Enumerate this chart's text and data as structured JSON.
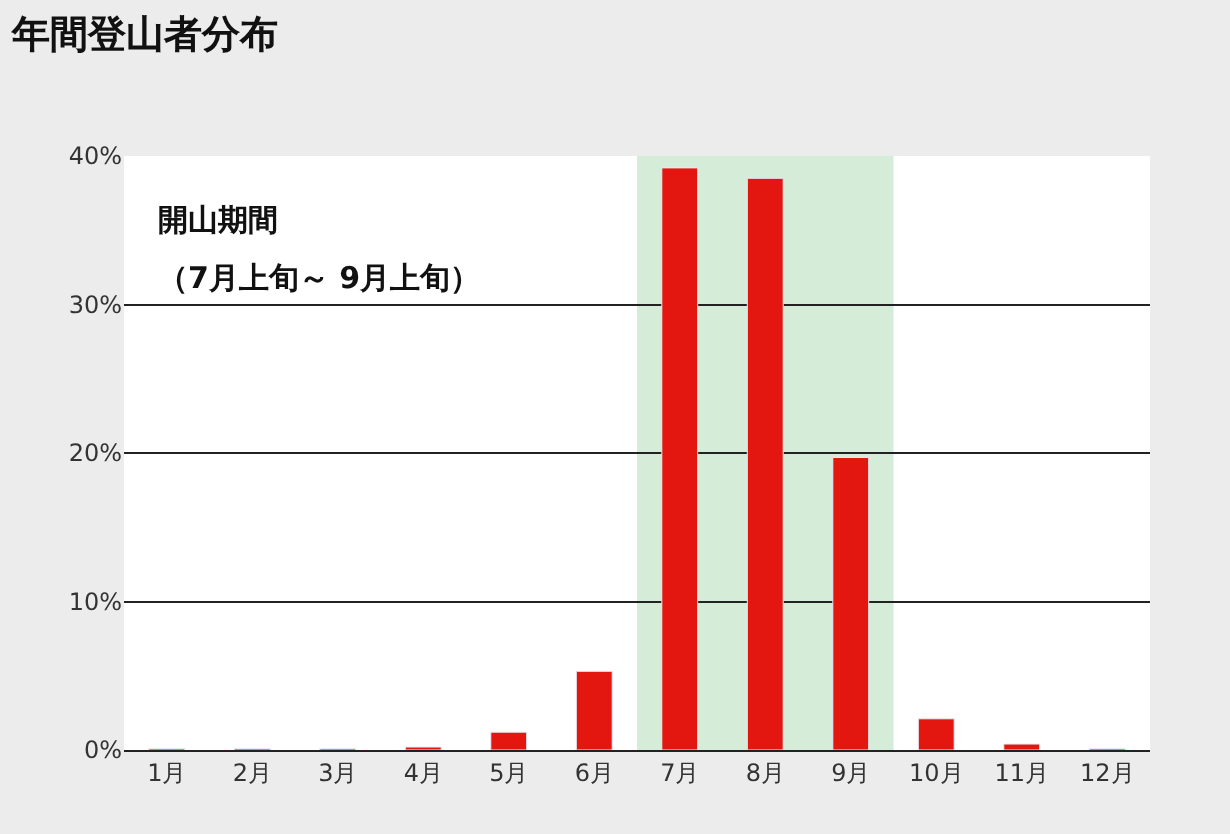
{
  "chart_data": {
    "type": "bar",
    "title": "年間登山者分布",
    "categories": [
      "1月",
      "2月",
      "3月",
      "4月",
      "5月",
      "6月",
      "7月",
      "8月",
      "9月",
      "10月",
      "11月",
      "12月"
    ],
    "values": [
      0.1,
      0.1,
      0.1,
      0.2,
      1.2,
      5.3,
      39.2,
      38.5,
      19.7,
      2.1,
      0.4,
      0.1
    ],
    "color": "#e3170f",
    "ylim": [
      0,
      40
    ],
    "yticks": [
      {
        "value": 0,
        "label": "0%"
      },
      {
        "value": 10,
        "label": "10%"
      },
      {
        "value": 20,
        "label": "20%"
      },
      {
        "value": 30,
        "label": "30%"
      },
      {
        "value": 40,
        "label": "40%"
      }
    ],
    "grid": "y",
    "bands": [
      {
        "axis": "x",
        "from": "7月",
        "to": "9月",
        "color": "#9fd4a8"
      }
    ],
    "annotations": [
      "開山期間",
      "（7月上旬～ 9月上旬）"
    ]
  }
}
